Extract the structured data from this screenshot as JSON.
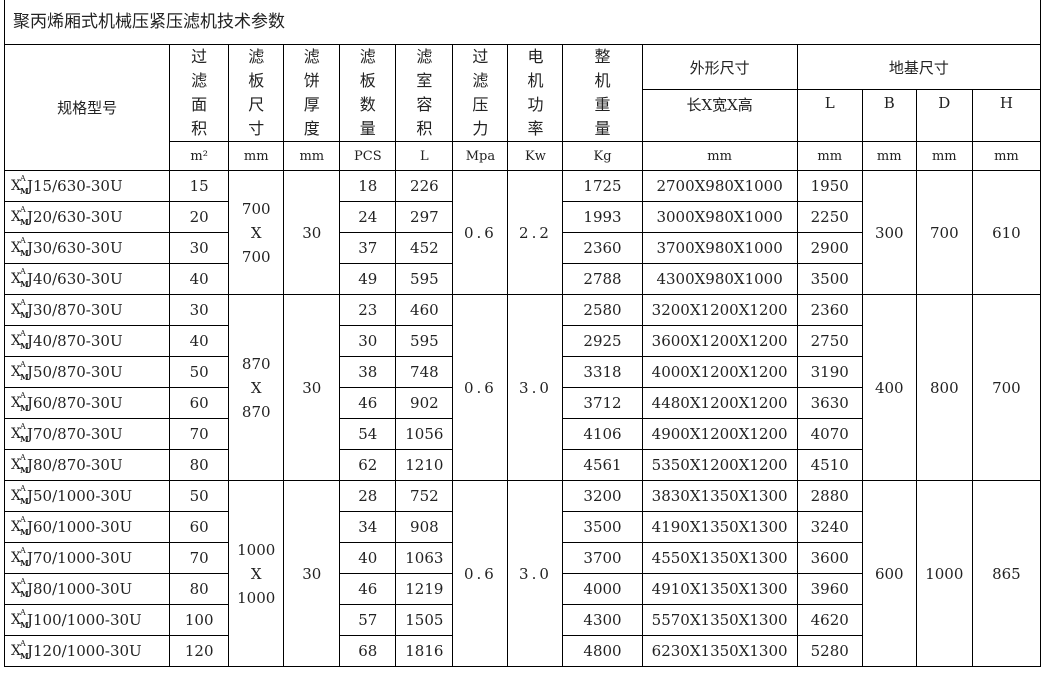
{
  "title": "聚丙烯厢式机械压紧压滤机技术参数",
  "headers": {
    "model": "规格型号",
    "area": "过滤面积",
    "area_unit": "m²",
    "plate_size": "滤板尺寸",
    "plate_size_unit": "mm",
    "cake": "滤饼厚度",
    "cake_unit": "mm",
    "plates": "滤板数量",
    "plates_unit": "PCS",
    "volume": "滤室容积",
    "volume_unit": "L",
    "pressure": "过滤压力",
    "pressure_unit": "Mpa",
    "power": "电机功率",
    "power_unit": "Kw",
    "weight": "整机重量",
    "weight_unit": "Kg",
    "outline": "外形尺寸",
    "outline_sub": "长X宽X高",
    "outline_unit": "mm",
    "foundation": "地基尺寸",
    "f_L": "L",
    "f_B": "B",
    "f_D": "D",
    "f_H": "H",
    "f_unit": "mm"
  },
  "model_prefix": {
    "base": "X",
    "sup": "A",
    "sub": "M"
  },
  "groups": [
    {
      "plate_size": [
        "700",
        "X",
        "700"
      ],
      "cake": "30",
      "pressure": "0.6",
      "power": "2.2",
      "B": "300",
      "D": "700",
      "H": "610",
      "rows": [
        {
          "model": "J15/630-30U",
          "area": "15",
          "plates": "18",
          "volume": "226",
          "weight": "1725",
          "outline": "2700X980X1000",
          "L": "1950"
        },
        {
          "model": "J20/630-30U",
          "area": "20",
          "plates": "24",
          "volume": "297",
          "weight": "1993",
          "outline": "3000X980X1000",
          "L": "2250"
        },
        {
          "model": "J30/630-30U",
          "area": "30",
          "plates": "37",
          "volume": "452",
          "weight": "2360",
          "outline": "3700X980X1000",
          "L": "2900"
        },
        {
          "model": "J40/630-30U",
          "area": "40",
          "plates": "49",
          "volume": "595",
          "weight": "2788",
          "outline": "4300X980X1000",
          "L": "3500"
        }
      ]
    },
    {
      "plate_size": [
        "870",
        "X",
        "870"
      ],
      "cake": "30",
      "pressure": "0.6",
      "power": "3.0",
      "B": "400",
      "D": "800",
      "H": "700",
      "rows": [
        {
          "model": "J30/870-30U",
          "area": "30",
          "plates": "23",
          "volume": "460",
          "weight": "2580",
          "outline": "3200X1200X1200",
          "L": "2360"
        },
        {
          "model": "J40/870-30U",
          "area": "40",
          "plates": "30",
          "volume": "595",
          "weight": "2925",
          "outline": "3600X1200X1200",
          "L": "2750"
        },
        {
          "model": "J50/870-30U",
          "area": "50",
          "plates": "38",
          "volume": "748",
          "weight": "3318",
          "outline": "4000X1200X1200",
          "L": "3190"
        },
        {
          "model": "J60/870-30U",
          "area": "60",
          "plates": "46",
          "volume": "902",
          "weight": "3712",
          "outline": "4480X1200X1200",
          "L": "3630"
        },
        {
          "model": "J70/870-30U",
          "area": "70",
          "plates": "54",
          "volume": "1056",
          "weight": "4106",
          "outline": "4900X1200X1200",
          "L": "4070"
        },
        {
          "model": "J80/870-30U",
          "area": "80",
          "plates": "62",
          "volume": "1210",
          "weight": "4561",
          "outline": "5350X1200X1200",
          "L": "4510"
        }
      ]
    },
    {
      "plate_size": [
        "1000",
        "X",
        "1000"
      ],
      "cake": "30",
      "pressure": "0.6",
      "power": "3.0",
      "B": "600",
      "D": "1000",
      "H": "865",
      "rows": [
        {
          "model": "J50/1000-30U",
          "area": "50",
          "plates": "28",
          "volume": "752",
          "weight": "3200",
          "outline": "3830X1350X1300",
          "L": "2880"
        },
        {
          "model": "J60/1000-30U",
          "area": "60",
          "plates": "34",
          "volume": "908",
          "weight": "3500",
          "outline": "4190X1350X1300",
          "L": "3240"
        },
        {
          "model": "J70/1000-30U",
          "area": "70",
          "plates": "40",
          "volume": "1063",
          "weight": "3700",
          "outline": "4550X1350X1300",
          "L": "3600"
        },
        {
          "model": "J80/1000-30U",
          "area": "80",
          "plates": "46",
          "volume": "1219",
          "weight": "4000",
          "outline": "4910X1350X1300",
          "L": "3960"
        },
        {
          "model": "J100/1000-30U",
          "area": "100",
          "plates": "57",
          "volume": "1505",
          "weight": "4300",
          "outline": "5570X1350X1300",
          "L": "4620"
        },
        {
          "model": "J120/1000-30U",
          "area": "120",
          "plates": "68",
          "volume": "1816",
          "weight": "4800",
          "outline": "6230X1350X1300",
          "L": "5280"
        }
      ]
    }
  ]
}
